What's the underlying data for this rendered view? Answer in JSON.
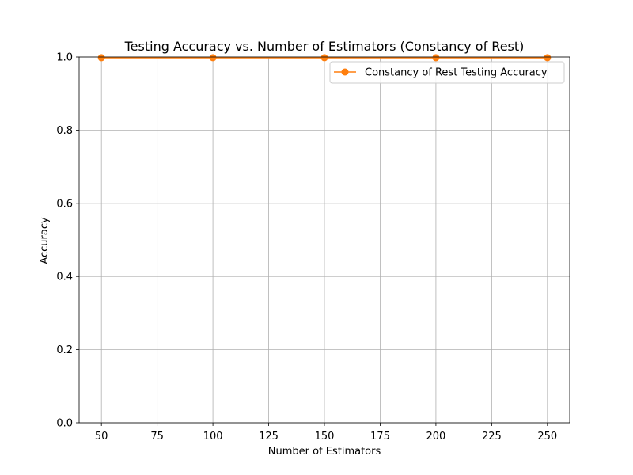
{
  "chart_data": {
    "type": "line",
    "title": "Testing Accuracy vs. Number of Estimators (Constancy of Rest)",
    "xlabel": "Number of Estimators",
    "ylabel": "Accuracy",
    "xlim": [
      40,
      260
    ],
    "ylim": [
      0,
      1.0
    ],
    "x_ticks": [
      50,
      75,
      100,
      125,
      150,
      175,
      200,
      225,
      250
    ],
    "y_ticks": [
      0.0,
      0.2,
      0.4,
      0.6,
      0.8,
      1.0
    ],
    "y_tick_labels": [
      "0.0",
      "0.2",
      "0.4",
      "0.6",
      "0.8",
      "1.0"
    ],
    "grid": true,
    "legend_position": "top-right",
    "series": [
      {
        "name": "Constancy of Rest Testing Accuracy",
        "color": "#ff7f0e",
        "marker": "circle",
        "x": [
          50,
          100,
          150,
          200,
          250
        ],
        "y": [
          0.998,
          0.998,
          0.998,
          0.998,
          0.998
        ]
      }
    ]
  }
}
